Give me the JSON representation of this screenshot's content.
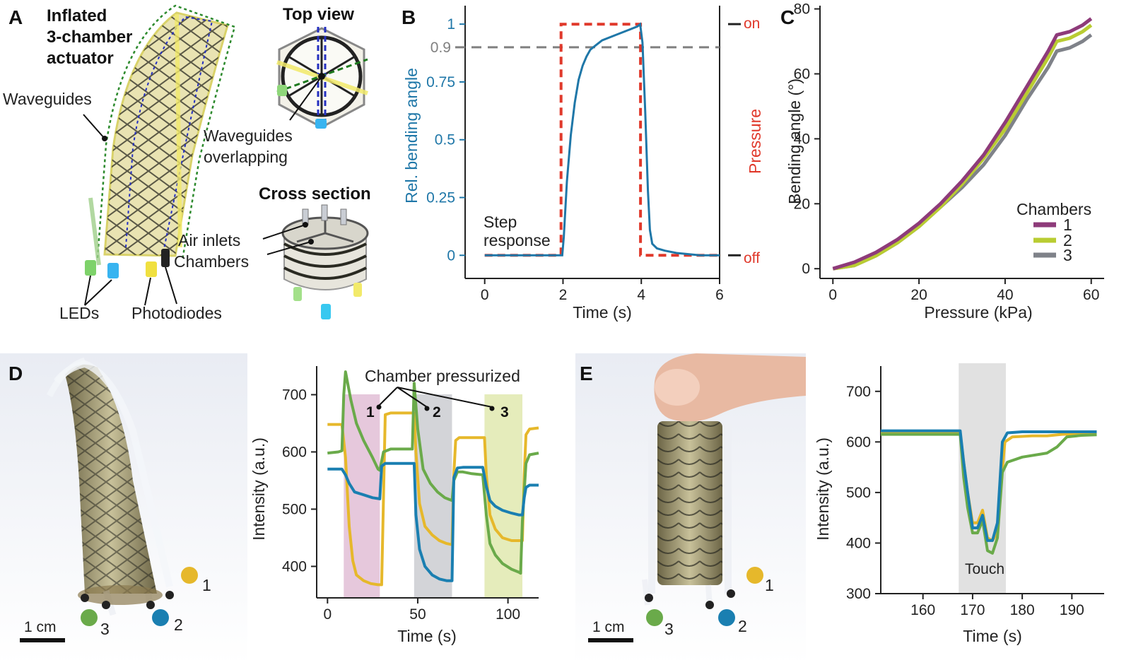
{
  "panels": {
    "A": {
      "letter": "A",
      "title_line1": "Inflated",
      "title_line2": "3-chamber",
      "title_line3": "actuator",
      "waveguides": "Waveguides",
      "top_view": "Top view",
      "overlap_line1": "Waveguides",
      "overlap_line2": "overlapping",
      "cross_section": "Cross section",
      "air_inlets": "Air inlets",
      "chambers": "Chambers",
      "leds": "LEDs",
      "photodiodes": "Photodiodes"
    },
    "D": {
      "letter": "D",
      "scale_bar": "1 cm",
      "label_1": "1",
      "label_2": "2",
      "label_3": "3"
    },
    "E": {
      "letter": "E",
      "scale_bar": "1 cm",
      "label_1": "1",
      "label_2": "2",
      "label_3": "3"
    }
  },
  "colors": {
    "step": "#1f77a8",
    "pressure": "#e0392b",
    "threshold": "#808080",
    "ch1": "#8e3b7a",
    "ch2": "#b9cc32",
    "ch3": "#7f8289",
    "sensor_yellow": "#e6b82b",
    "sensor_green": "#6aaa4a",
    "sensor_blue": "#1a7fb1",
    "shade_pink": "#e6c8dc",
    "shade_gray": "#d3d4d8",
    "shade_green": "#e5ecbb",
    "shade_touch": "#e1e1e1"
  },
  "chart_data": [
    {
      "id": "B",
      "letter": "B",
      "type": "line",
      "xlabel": "Time (s)",
      "ylabel": "Rel. bending angle",
      "y2label": "Pressure",
      "xlim": [
        -0.5,
        6.0
      ],
      "ylim": [
        -0.1,
        1.08
      ],
      "xticks": [
        0,
        2,
        4,
        6
      ],
      "yticks": [
        0,
        0.25,
        0.5,
        0.75,
        1
      ],
      "ytick_labels": [
        "0",
        "0.25",
        "0.5",
        "0.75",
        "1"
      ],
      "y2_labels": {
        "on": "on",
        "off": "off"
      },
      "threshold": {
        "value": 0.9,
        "label": "0.9"
      },
      "annotation_line1": "Step",
      "annotation_line2": "response",
      "series": [
        {
          "role": "step",
          "x": [
            0,
            1.98,
            2.02,
            2.1,
            2.2,
            2.3,
            2.4,
            2.5,
            2.6,
            2.7,
            2.85,
            3.0,
            3.3,
            3.6,
            3.9,
            3.97,
            4.03,
            4.1,
            4.17,
            4.22,
            4.28,
            4.4,
            4.6,
            4.9,
            5.5,
            6.0
          ],
          "y": [
            0,
            0,
            0.08,
            0.32,
            0.52,
            0.66,
            0.76,
            0.82,
            0.86,
            0.89,
            0.91,
            0.93,
            0.95,
            0.97,
            0.99,
            1.0,
            0.92,
            0.62,
            0.28,
            0.11,
            0.05,
            0.03,
            0.02,
            0.01,
            0.0,
            0.0
          ]
        },
        {
          "role": "pressure",
          "x": [
            0,
            1.95,
            1.95,
            3.98,
            3.98,
            6.0
          ],
          "y": [
            0,
            0,
            1,
            1,
            0,
            0
          ]
        }
      ]
    },
    {
      "id": "C",
      "letter": "C",
      "type": "line",
      "xlabel": "Pressure (kPa)",
      "ylabel": "Bending angle (°)",
      "xlim": [
        -3,
        63
      ],
      "ylim": [
        -3,
        81
      ],
      "xticks": [
        0,
        20,
        40,
        60
      ],
      "yticks": [
        0,
        20,
        40,
        60,
        80
      ],
      "legend_title": "Chambers",
      "legend_position": "lower-right",
      "series": [
        {
          "name": "1",
          "x": [
            0,
            5,
            10,
            15,
            20,
            25,
            30,
            35,
            40,
            45,
            50,
            52,
            55,
            58,
            60
          ],
          "y": [
            0,
            2,
            5,
            9,
            14,
            20,
            27,
            35,
            45,
            56,
            67,
            72,
            73,
            75,
            77
          ]
        },
        {
          "name": "2",
          "x": [
            0,
            5,
            10,
            15,
            20,
            25,
            30,
            35,
            40,
            45,
            50,
            52,
            55,
            58,
            60
          ],
          "y": [
            0,
            1,
            4,
            8,
            13,
            19,
            26,
            34,
            43,
            54,
            65,
            70,
            71,
            73,
            75
          ]
        },
        {
          "name": "3",
          "x": [
            0,
            5,
            10,
            15,
            20,
            25,
            30,
            35,
            40,
            45,
            50,
            52,
            55,
            58,
            60
          ],
          "y": [
            0,
            1,
            4,
            8,
            13,
            19,
            25,
            32,
            41,
            52,
            62,
            67,
            68,
            70,
            72
          ]
        }
      ]
    },
    {
      "id": "D",
      "type": "line",
      "xlabel": "Time (s)",
      "ylabel": "Intensity (a.u.)",
      "xlim": [
        -6,
        117
      ],
      "ylim": [
        345,
        750
      ],
      "xticks": [
        0,
        50,
        100
      ],
      "yticks": [
        400,
        500,
        600,
        700
      ],
      "annotation": "Chamber pressurized",
      "markers": [
        "1",
        "2",
        "3"
      ],
      "shaded": [
        {
          "x": [
            9,
            29
          ]
        },
        {
          "x": [
            48,
            69
          ]
        },
        {
          "x": [
            87,
            108
          ]
        }
      ],
      "series": [
        {
          "sensor": "yellow",
          "x": [
            0,
            8,
            10,
            12,
            14,
            16,
            20,
            24,
            28,
            30,
            31,
            32,
            35,
            40,
            48,
            49,
            51,
            54,
            58,
            62,
            66,
            69,
            70,
            71,
            73,
            80,
            87,
            88,
            90,
            93,
            97,
            102,
            106,
            108,
            109,
            110,
            112,
            117
          ],
          "y": [
            648,
            648,
            590,
            470,
            410,
            385,
            375,
            370,
            368,
            368,
            520,
            665,
            668,
            668,
            668,
            600,
            510,
            470,
            455,
            445,
            440,
            438,
            560,
            620,
            625,
            625,
            625,
            560,
            490,
            465,
            450,
            445,
            445,
            445,
            560,
            630,
            640,
            642
          ]
        },
        {
          "sensor": "green",
          "x": [
            0,
            6,
            8,
            9,
            10,
            13,
            16,
            20,
            25,
            28,
            29,
            31,
            35,
            40,
            47,
            48,
            50,
            53,
            57,
            61,
            65,
            69,
            70,
            72,
            75,
            80,
            86,
            88,
            90,
            93,
            97,
            102,
            106,
            107,
            108,
            110,
            112,
            117
          ],
          "y": [
            598,
            600,
            602,
            700,
            740,
            690,
            650,
            620,
            590,
            570,
            568,
            600,
            605,
            605,
            605,
            720,
            640,
            570,
            545,
            530,
            520,
            515,
            550,
            565,
            565,
            562,
            560,
            490,
            440,
            420,
            405,
            395,
            390,
            388,
            480,
            580,
            595,
            598
          ]
        },
        {
          "sensor": "blue",
          "x": [
            0,
            8,
            10,
            12,
            15,
            20,
            25,
            29,
            30,
            32,
            35,
            40,
            48,
            49,
            51,
            54,
            58,
            62,
            66,
            69,
            70,
            72,
            75,
            80,
            86,
            88,
            90,
            93,
            97,
            102,
            106,
            108,
            109,
            110,
            112,
            117
          ],
          "y": [
            570,
            570,
            560,
            545,
            530,
            525,
            520,
            518,
            575,
            580,
            580,
            580,
            580,
            490,
            430,
            400,
            385,
            378,
            375,
            375,
            555,
            572,
            573,
            573,
            573,
            540,
            515,
            505,
            498,
            493,
            490,
            490,
            520,
            538,
            542,
            542
          ]
        }
      ]
    },
    {
      "id": "E",
      "type": "line",
      "xlabel": "Time (s)",
      "ylabel": "Intensity (a.u.)",
      "xlim": [
        151.5,
        196.5
      ],
      "ylim": [
        300,
        750
      ],
      "xticks": [
        160,
        170,
        180,
        190
      ],
      "yticks": [
        300,
        400,
        500,
        600,
        700
      ],
      "annotation": "Touch",
      "shaded": [
        {
          "x": [
            167.2,
            176.7
          ]
        }
      ],
      "series": [
        {
          "sensor": "yellow",
          "x": [
            151.5,
            160,
            167.5,
            168.2,
            169,
            170,
            171,
            172,
            173,
            174,
            175,
            176,
            176.5,
            178,
            182,
            185,
            188,
            191,
            195
          ],
          "y": [
            617,
            617,
            617,
            560,
            500,
            440,
            440,
            465,
            410,
            405,
            420,
            545,
            600,
            610,
            612,
            612,
            615,
            616,
            616
          ]
        },
        {
          "sensor": "green",
          "x": [
            151.5,
            160,
            167.5,
            168.2,
            169,
            170,
            171,
            172,
            173,
            174,
            175,
            176,
            177,
            180,
            185,
            187,
            189,
            192,
            195
          ],
          "y": [
            615,
            615,
            615,
            530,
            470,
            420,
            420,
            445,
            385,
            380,
            410,
            540,
            560,
            570,
            578,
            590,
            610,
            613,
            614
          ]
        },
        {
          "sensor": "blue",
          "x": [
            151.5,
            160,
            167.5,
            168.2,
            169,
            170,
            171,
            172,
            173,
            174,
            175,
            176,
            177,
            180,
            185,
            190,
            195
          ],
          "y": [
            622,
            622,
            622,
            560,
            500,
            430,
            430,
            455,
            405,
            405,
            440,
            600,
            618,
            620,
            620,
            620,
            620
          ]
        }
      ]
    }
  ]
}
